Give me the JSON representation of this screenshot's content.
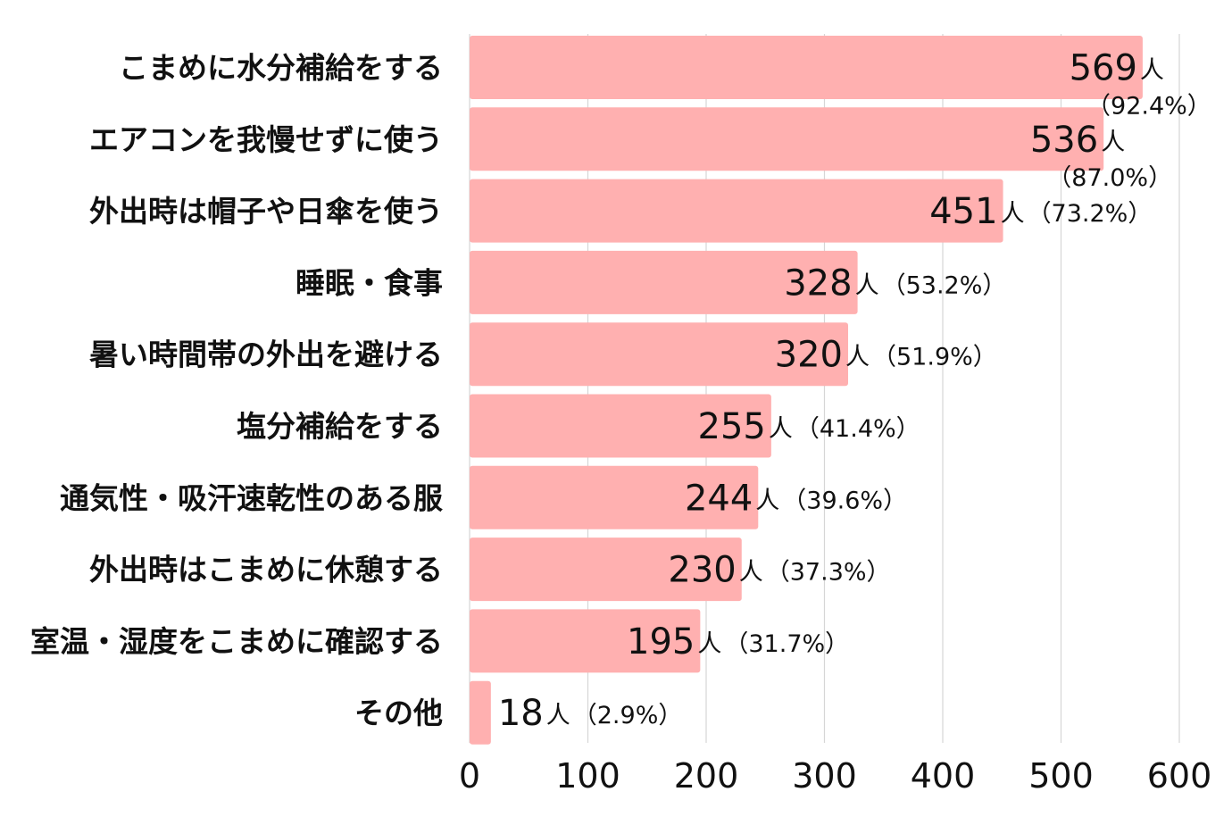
{
  "chart_data": {
    "type": "bar",
    "orientation": "horizontal",
    "categories": [
      "こまめに水分補給をする",
      "エアコンを我慢せずに使う",
      "外出時は帽子や日傘を使う",
      "睡眠・食事",
      "暑い時間帯の外出を避ける",
      "塩分補給をする",
      "通気性・吸汗速乾性のある服",
      "外出時はこまめに休憩する",
      "室温・湿度をこまめに確認する",
      "その他"
    ],
    "values": [
      569,
      536,
      451,
      328,
      320,
      255,
      244,
      230,
      195,
      18
    ],
    "unit_labels": [
      "人",
      "人",
      "人",
      "人",
      "人",
      "人",
      "人",
      "人",
      "人",
      "人"
    ],
    "percent_labels": [
      "（92.4%）",
      "（87.0%）",
      "（73.2%）",
      "（53.2%）",
      "（51.9%）",
      "（41.4%）",
      "（39.6%）",
      "（37.3%）",
      "（31.7%）",
      "（2.9%）"
    ],
    "xlim": [
      0,
      600
    ],
    "xticks": [
      "0",
      "100",
      "200",
      "300",
      "400",
      "500",
      "600"
    ],
    "grid": true,
    "colors": {
      "bar": "#ffb0b0",
      "grid": "#d6d6d6",
      "text": "#111111"
    }
  }
}
